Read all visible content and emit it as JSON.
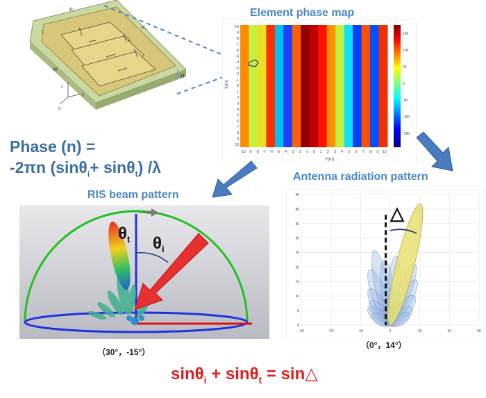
{
  "titles": {
    "phase_map": "Element phase map",
    "ris_beam": "RIS beam pattern",
    "antenna": "Antenna radiation pattern"
  },
  "formula": {
    "line1": "Phase (n) =",
    "line2": "-2πn (sinθi + sinθt) /λ"
  },
  "captions": {
    "ris": "（30°，-15°）",
    "antenna": "（0°，14°）"
  },
  "bottom_equation": "sinθi + sinθt = sin△",
  "beam_labels": {
    "theta_t": "θt",
    "theta_i": "θi",
    "delta": "△"
  },
  "pcb_labels": {
    "p1": "P₁",
    "p2": "P₂",
    "h": "H",
    "l": "L",
    "w": "W",
    "x": "x",
    "y": "y",
    "z": "z"
  },
  "chart_data": [
    {
      "type": "heatmap",
      "title": "Element phase map",
      "xlabel": "Y(m)",
      "ylabel": "X(m)",
      "x_ticks": [
        "-10",
        "-9",
        "-8",
        "-7",
        "-6",
        "-5",
        "-4",
        "-3",
        "-2",
        "-1",
        "0",
        "1",
        "2",
        "3",
        "4",
        "5",
        "6",
        "7",
        "8",
        "9",
        "10"
      ],
      "y_ticks": [
        "-10",
        "-9",
        "-8",
        "-7",
        "-6",
        "-5",
        "-4",
        "-3",
        "-2",
        "-1",
        "0",
        "1",
        "2",
        "3",
        "4",
        "5",
        "6",
        "7",
        "8",
        "9",
        "10"
      ],
      "column_colors": [
        "#ff8c00",
        "#c8f040",
        "#e8e020",
        "#ff3000",
        "#00c0f0",
        "#2040ff",
        "#ff6000",
        "#900000",
        "#c00000",
        "#ff1000",
        "#ff9000",
        "#c0f040",
        "#10e0ff",
        "#0040ff",
        "#ff5000",
        "#0050ff",
        "#f03000"
      ],
      "colorbar_ticks": [
        "150",
        "100",
        "50",
        "0",
        "-50",
        "-100",
        "-150"
      ],
      "colorbar_range": [
        -180,
        180
      ]
    },
    {
      "type": "line",
      "title": "Antenna radiation pattern",
      "x_ticks": [
        "-30",
        "-20",
        "-10",
        "0",
        "10",
        "20",
        "30"
      ],
      "y_ticks": [
        "0",
        "5",
        "10",
        "15",
        "20",
        "25",
        "30",
        "35",
        "40",
        "45"
      ],
      "xlim": [
        -30,
        30
      ],
      "ylim": [
        0,
        45
      ],
      "main_lobe_angle_deg": 14
    }
  ]
}
